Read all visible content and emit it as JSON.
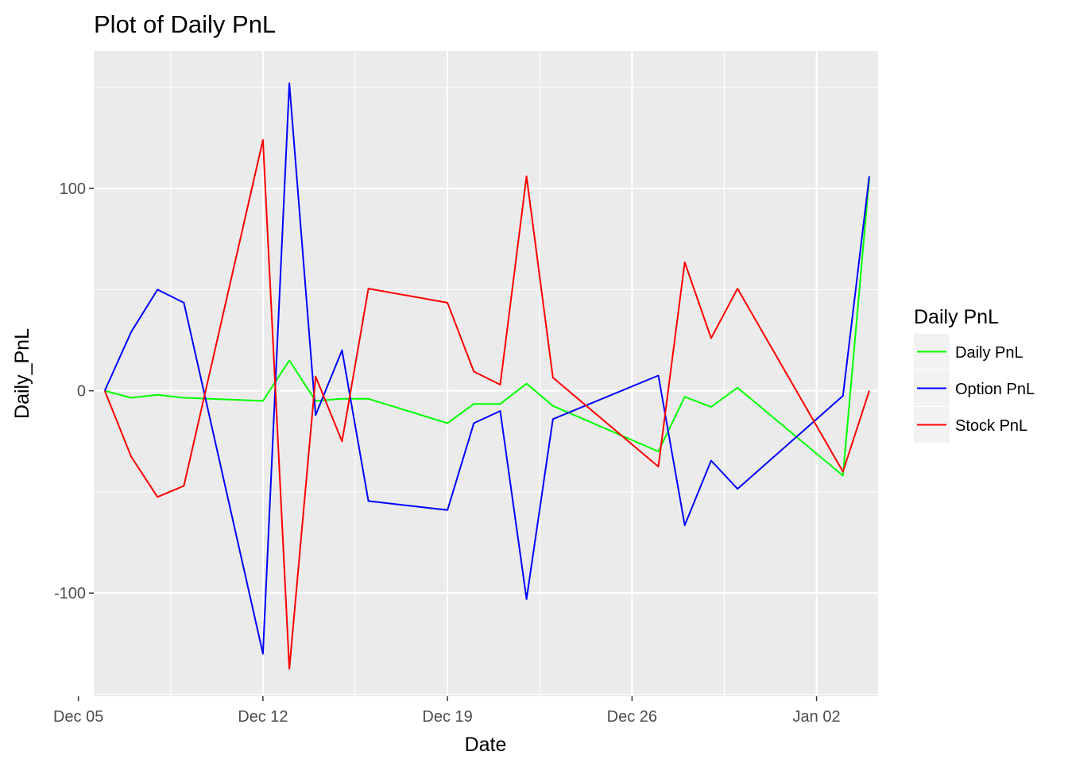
{
  "chart_data": {
    "type": "line",
    "title": "Plot of Daily PnL",
    "xlabel": "Date",
    "ylabel": "Daily_PnL",
    "x_type": "date",
    "x": [
      "2016-12-06",
      "2016-12-07",
      "2016-12-08",
      "2016-12-09",
      "2016-12-12",
      "2016-12-13",
      "2016-12-14",
      "2016-12-15",
      "2016-12-16",
      "2016-12-19",
      "2016-12-20",
      "2016-12-21",
      "2016-12-22",
      "2016-12-23",
      "2016-12-27",
      "2016-12-28",
      "2016-12-29",
      "2016-12-30",
      "2017-01-03",
      "2017-01-04"
    ],
    "xlim": [
      "2016-12-05T14:00",
      "2017-01-04T08:00"
    ],
    "ylim": [
      -151,
      168
    ],
    "x_ticks": [
      {
        "date": "2016-12-05",
        "label": "Dec 05"
      },
      {
        "date": "2016-12-12",
        "label": "Dec 12"
      },
      {
        "date": "2016-12-19",
        "label": "Dec 19"
      },
      {
        "date": "2016-12-26",
        "label": "Dec 26"
      },
      {
        "date": "2017-01-02",
        "label": "Jan 02"
      }
    ],
    "y_ticks": [
      {
        "value": 100,
        "label": "100"
      },
      {
        "value": 0,
        "label": "0"
      },
      {
        "value": -100,
        "label": "-100"
      }
    ],
    "grid": true,
    "legend": {
      "title": "Daily PnL",
      "position": "right"
    },
    "series": [
      {
        "name": "Daily PnL",
        "color": "#00ff00",
        "values": [
          0,
          -3.5,
          -2,
          -3.5,
          -5,
          15,
          -5,
          -4,
          -4,
          -16,
          -6.5,
          -6.5,
          3.5,
          -7.5,
          -30,
          -3,
          -8,
          1.5,
          -42,
          105
        ]
      },
      {
        "name": "Option PnL",
        "color": "#0000ff",
        "values": [
          0,
          29,
          50,
          43.5,
          -130,
          152,
          -12,
          20,
          -54.5,
          -59,
          -16,
          -10,
          -103,
          -14,
          7.5,
          -66.5,
          -34.5,
          -48.5,
          -2.5,
          106
        ]
      },
      {
        "name": "Stock PnL",
        "color": "#ff0000",
        "values": [
          0,
          -32.5,
          -52.5,
          -47,
          124,
          -137.5,
          7,
          -25,
          50.5,
          43.5,
          9.5,
          3,
          106,
          6.5,
          -37.5,
          63.5,
          26,
          50.5,
          -40,
          0
        ]
      }
    ]
  }
}
